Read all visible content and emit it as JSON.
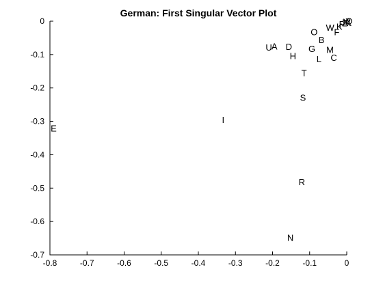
{
  "chart_data": {
    "type": "scatter",
    "title": "German: First Singular Vector Plot",
    "xlabel": "",
    "ylabel": "",
    "xlim": [
      -0.8,
      0
    ],
    "ylim": [
      -0.7,
      0
    ],
    "grid": false,
    "xticks": [
      -0.8,
      -0.7,
      -0.6,
      -0.5,
      -0.4,
      -0.3,
      -0.2,
      -0.1,
      0
    ],
    "yticks": [
      0,
      -0.1,
      -0.2,
      -0.3,
      -0.4,
      -0.5,
      -0.6,
      -0.7
    ],
    "xtick_labels": [
      "-0.8",
      "-0.7",
      "-0.6",
      "-0.5",
      "-0.4",
      "-0.3",
      "-0.2",
      "-0.1",
      "0"
    ],
    "ytick_labels": [
      "0",
      "-0.1",
      "-0.2",
      "-0.3",
      "-0.4",
      "-0.5",
      "-0.6",
      "-0.7"
    ],
    "points": [
      {
        "label": "E",
        "x": -0.79,
        "y": -0.32
      },
      {
        "label": "I",
        "x": -0.333,
        "y": -0.295
      },
      {
        "label": "N",
        "x": -0.152,
        "y": -0.648
      },
      {
        "label": "R",
        "x": -0.121,
        "y": -0.481
      },
      {
        "label": "S",
        "x": -0.118,
        "y": -0.228
      },
      {
        "label": "T",
        "x": -0.115,
        "y": -0.155
      },
      {
        "label": "U",
        "x": -0.21,
        "y": -0.078
      },
      {
        "label": "A",
        "x": -0.195,
        "y": -0.075
      },
      {
        "label": "D",
        "x": -0.156,
        "y": -0.076
      },
      {
        "label": "H",
        "x": -0.145,
        "y": -0.103
      },
      {
        "label": "G",
        "x": -0.094,
        "y": -0.082
      },
      {
        "label": "L",
        "x": -0.075,
        "y": -0.113
      },
      {
        "label": "O",
        "x": -0.088,
        "y": -0.032
      },
      {
        "label": "B",
        "x": -0.068,
        "y": -0.055
      },
      {
        "label": "M",
        "x": -0.045,
        "y": -0.085
      },
      {
        "label": "C",
        "x": -0.035,
        "y": -0.108
      },
      {
        "label": "W",
        "x": -0.045,
        "y": -0.018
      },
      {
        "label": "F",
        "x": -0.027,
        "y": -0.032
      },
      {
        "label": "K",
        "x": -0.02,
        "y": -0.015
      },
      {
        "label": "P",
        "x": -0.013,
        "y": -0.008
      },
      {
        "label": "Z",
        "x": -0.005,
        "y": -0.005
      },
      {
        "label": "V",
        "x": 0.002,
        "y": -0.004
      },
      {
        "label": "J",
        "x": -0.01,
        "y": -0.003
      },
      {
        "label": "Y",
        "x": -0.002,
        "y": -0.001
      },
      {
        "label": "X",
        "x": 0.004,
        "y": 0.0
      },
      {
        "label": "Q",
        "x": 0.006,
        "y": 0.001
      }
    ]
  }
}
